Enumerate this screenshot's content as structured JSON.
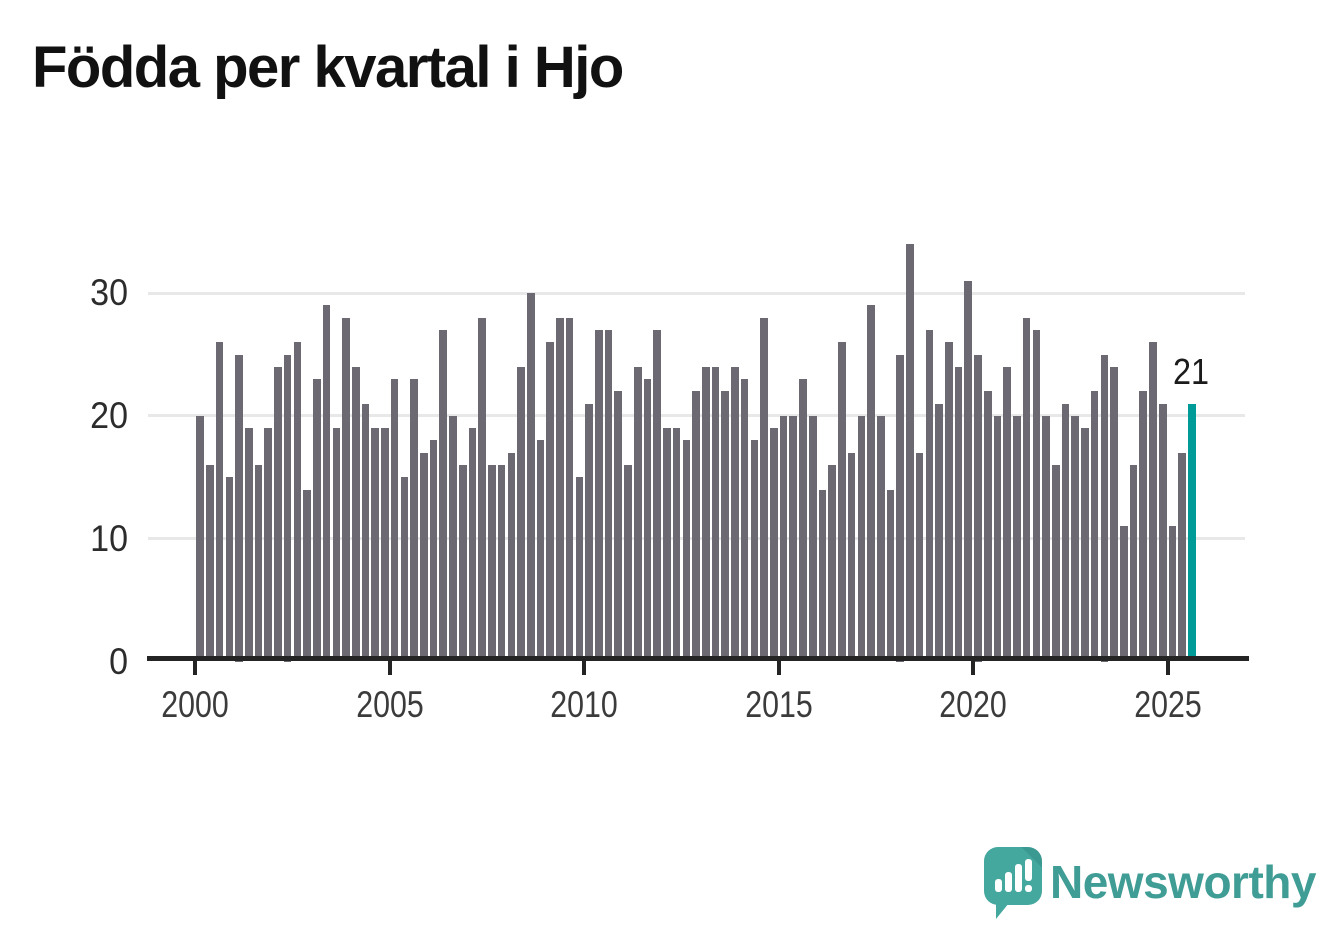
{
  "title": "Födda per kvartal i Hjo",
  "chart_data": {
    "type": "bar",
    "title": "Födda per kvartal i Hjo",
    "frequency": "quarterly",
    "x_start": "2000-Q1",
    "x_end": "2025-Q3",
    "x_tick_labels": [
      "2000",
      "2005",
      "2010",
      "2015",
      "2020",
      "2025"
    ],
    "y_tick_labels": [
      "0",
      "10",
      "20",
      "30"
    ],
    "y_ticks": [
      0,
      10,
      20,
      30
    ],
    "ylim": [
      0,
      35.5
    ],
    "grid": true,
    "legend": false,
    "bar_color": "#6d6972",
    "highlight_color": "#009b96",
    "annotation": {
      "text": "21",
      "target": "2025-Q3"
    },
    "series": [
      {
        "name": "Födda",
        "values": [
          20,
          16,
          26,
          15,
          25,
          19,
          16,
          19,
          24,
          25,
          26,
          14,
          23,
          29,
          19,
          28,
          24,
          21,
          19,
          19,
          23,
          15,
          23,
          17,
          18,
          27,
          20,
          16,
          19,
          28,
          16,
          16,
          17,
          24,
          30,
          18,
          26,
          28,
          28,
          15,
          21,
          27,
          27,
          22,
          16,
          24,
          23,
          27,
          19,
          19,
          18,
          22,
          24,
          24,
          22,
          24,
          23,
          18,
          28,
          19,
          20,
          20,
          23,
          20,
          14,
          16,
          26,
          17,
          20,
          29,
          20,
          14,
          25,
          34,
          17,
          27,
          21,
          26,
          24,
          31,
          25,
          22,
          20,
          24,
          20,
          28,
          27,
          20,
          16,
          21,
          20,
          19,
          22,
          25,
          24,
          11,
          16,
          22,
          26,
          21,
          11,
          17,
          21
        ]
      }
    ],
    "highlight_index": 102
  },
  "branding": {
    "logo_text": "Newsworthy",
    "logo_icon": "speech-bubble-bar-chart-icon",
    "logo_color": "#45a89f",
    "text_color": "#3f9d96"
  },
  "layout_colors": {
    "background": "#ffffff",
    "axis": "#242424",
    "gridline": "#e9e8e8",
    "bar": "#6d6972",
    "highlight": "#009b96"
  }
}
